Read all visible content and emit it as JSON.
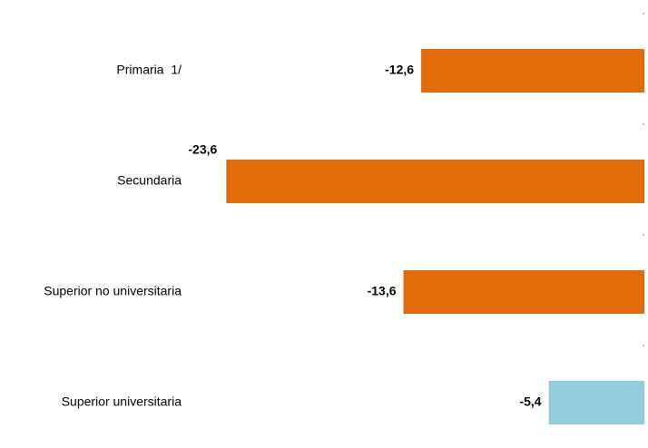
{
  "chart_data": {
    "type": "bar",
    "orientation": "horizontal",
    "categories": [
      "Primaria  1/",
      "Secundaria",
      "Superior no universitaria",
      "Superior universitaria"
    ],
    "values": [
      -12.6,
      -23.6,
      -13.6,
      -5.4
    ],
    "value_labels": [
      "-12,6",
      "-23,6",
      "-13,6",
      "-5,4"
    ],
    "colors": [
      "#e36c0a",
      "#e36c0a",
      "#e36c0a",
      "#92cddc"
    ],
    "xlim": [
      -25,
      0
    ]
  }
}
